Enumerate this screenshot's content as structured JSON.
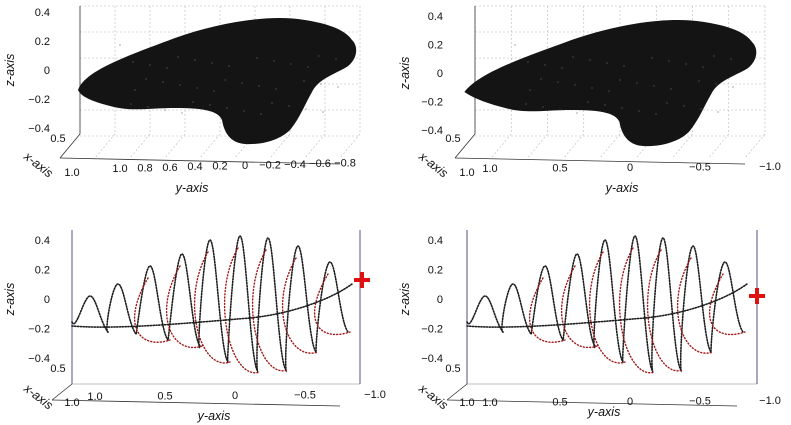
{
  "chart_data": [
    {
      "type": "3d-surface",
      "panel": "top-left",
      "xlabel": "x-axis",
      "ylabel": "y-axis",
      "zlabel": "z-axis",
      "x_ticks": [
        "0.5",
        "1.0"
      ],
      "y_ticks": [
        "1.0",
        "0.8",
        "0.6",
        "0.4",
        "0.2",
        "0",
        "−0.2",
        "−0.4",
        "−0.6",
        "−0.8"
      ],
      "z_ticks": [
        "0.4",
        "0.2",
        "0",
        "−0.2",
        "−0.4"
      ],
      "ylim": [
        1.0,
        -0.8
      ],
      "zlim": [
        -0.5,
        0.4
      ],
      "grid": true
    },
    {
      "type": "3d-surface",
      "panel": "top-right",
      "xlabel": "x-axis",
      "ylabel": "y-axis",
      "zlabel": "z-axis",
      "x_ticks": [
        "0.5",
        "1.0"
      ],
      "y_ticks": [
        "1.0",
        "0.5",
        "0",
        "−0.5",
        "−1.0"
      ],
      "z_ticks": [
        "0.4",
        "0.2",
        "0",
        "−0.2",
        "−0.4"
      ],
      "ylim": [
        1.0,
        -1.0
      ],
      "zlim": [
        -0.5,
        0.4
      ],
      "grid": true
    },
    {
      "type": "3d-line",
      "panel": "bottom-left",
      "xlabel": "x-axis",
      "ylabel": "y-axis",
      "zlabel": "z-axis",
      "x_ticks": [
        "0.5",
        "1.0"
      ],
      "y_ticks": [
        "1.0",
        "0.5",
        "0",
        "−0.5",
        "−1.0"
      ],
      "z_ticks": [
        "0.4",
        "0.2",
        "0",
        "−0.2",
        "−0.4"
      ],
      "ylim": [
        1.0,
        -1.0
      ],
      "zlim": [
        -0.5,
        0.4
      ],
      "grid": false,
      "end_marker": "red-plus"
    },
    {
      "type": "3d-line",
      "panel": "bottom-right",
      "xlabel": "x-axis",
      "ylabel": "y-axis",
      "zlabel": "z-axis",
      "x_ticks": [
        "0.5",
        "1.0"
      ],
      "y_ticks": [
        "1.0",
        "0.5",
        "0",
        "−0.5",
        "−1.0"
      ],
      "z_ticks": [
        "0.4",
        "0.2",
        "0",
        "−0.2",
        "−0.4"
      ],
      "ylim": [
        1.0,
        -1.0
      ],
      "zlim": [
        -0.5,
        0.4
      ],
      "grid": false,
      "end_marker": "red-plus"
    }
  ],
  "colors": {
    "surface": "#141414",
    "trajectory": "#1e1e1e",
    "trajectory_alt": "#a11818",
    "marker": "#e01010",
    "vertical_line": "#6f6f9a"
  }
}
